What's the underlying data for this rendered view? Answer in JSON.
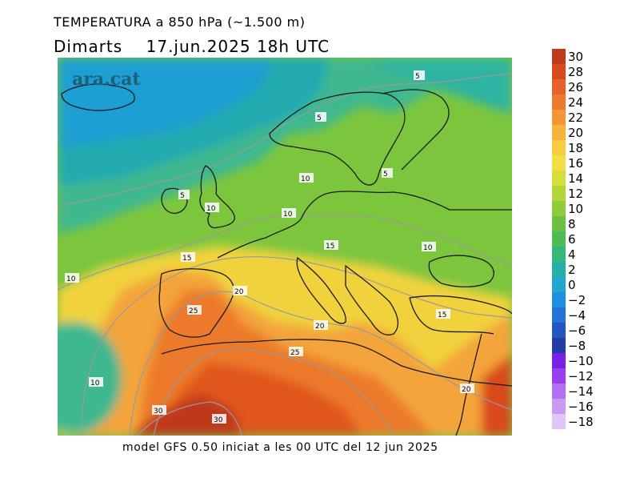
{
  "header": {
    "title": "TEMPERATURA a 850 hPa (~1.500 m)",
    "day": "Dimarts",
    "datetime": "17.jun.2025 18h UTC"
  },
  "map": {
    "watermark": "ara.cat",
    "contour_labels": [
      "5",
      "5",
      "5",
      "5",
      "10",
      "10",
      "10",
      "10",
      "10",
      "10",
      "15",
      "15",
      "15",
      "20",
      "20",
      "20",
      "25",
      "25",
      "30",
      "30"
    ]
  },
  "legend": {
    "levels": [
      {
        "label": "30",
        "color": "#c0391b"
      },
      {
        "label": "28",
        "color": "#d8491d"
      },
      {
        "label": "26",
        "color": "#e8612a"
      },
      {
        "label": "24",
        "color": "#ee7a2c"
      },
      {
        "label": "22",
        "color": "#f39633"
      },
      {
        "label": "20",
        "color": "#f6b43a"
      },
      {
        "label": "18",
        "color": "#f7cd3d"
      },
      {
        "label": "16",
        "color": "#f2dd42"
      },
      {
        "label": "14",
        "color": "#d6dd3c"
      },
      {
        "label": "12",
        "color": "#b4d53a"
      },
      {
        "label": "10",
        "color": "#8fcb3b"
      },
      {
        "label": "8",
        "color": "#6cc040"
      },
      {
        "label": "6",
        "color": "#4fbb55"
      },
      {
        "label": "4",
        "color": "#34b67d"
      },
      {
        "label": "2",
        "color": "#23b0a8"
      },
      {
        "label": "0",
        "color": "#1fa7d0"
      },
      {
        "label": "−2",
        "color": "#1f8fe6"
      },
      {
        "label": "−4",
        "color": "#2372d8"
      },
      {
        "label": "−6",
        "color": "#2356c0"
      },
      {
        "label": "−8",
        "color": "#233da8"
      },
      {
        "label": "−10",
        "color": "#7a1fe6"
      },
      {
        "label": "−12",
        "color": "#9b3ef0"
      },
      {
        "label": "−14",
        "color": "#b46ef2"
      },
      {
        "label": "−16",
        "color": "#c99af4"
      },
      {
        "label": "−18",
        "color": "#e0c6f7"
      }
    ]
  },
  "footer": "model GFS 0.50 iniciat a les 00 UTC del 12 jun 2025"
}
